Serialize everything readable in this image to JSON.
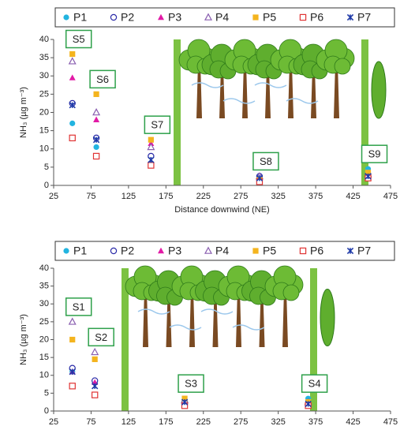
{
  "chart_data": [
    {
      "type": "scatter",
      "x_label": "Distance downwind (NE)",
      "y_label": "NH₃ (µg m⁻³)",
      "x": [
        50,
        82,
        155,
        300,
        445
      ],
      "annotations": [
        "S5",
        "S6",
        "S7",
        "S8",
        "S9"
      ],
      "xlim": [
        25,
        475
      ],
      "xticks": [
        25,
        75,
        125,
        175,
        225,
        275,
        325,
        375,
        425,
        475
      ],
      "ylim": [
        0,
        40
      ],
      "yticks": [
        0,
        5,
        10,
        15,
        20,
        25,
        30,
        35,
        40
      ],
      "series": [
        {
          "name": "P1",
          "color": "#22b4e0",
          "marker": "circle",
          "values": [
            17,
            10.5,
            6,
            2,
            4.5
          ]
        },
        {
          "name": "P2",
          "color": "#2b2ba8",
          "marker": "circle-open",
          "values": [
            22.5,
            13,
            8,
            2.5,
            3
          ]
        },
        {
          "name": "P3",
          "color": "#e21aa6",
          "marker": "triangle",
          "values": [
            29.5,
            18,
            11.5,
            1.5,
            2.5
          ]
        },
        {
          "name": "P4",
          "color": "#8a5fb0",
          "marker": "triangle-open",
          "values": [
            34,
            20,
            10.5,
            2.5,
            3
          ]
        },
        {
          "name": "P5",
          "color": "#f4b41e",
          "marker": "square",
          "values": [
            36,
            25,
            12.5,
            1.5,
            3.5
          ]
        },
        {
          "name": "P6",
          "color": "#e03434",
          "marker": "square-open",
          "values": [
            13,
            8,
            5.5,
            1,
            2
          ]
        },
        {
          "name": "P7",
          "color": "#1f3aa8",
          "marker": "star",
          "values": [
            22,
            12.5,
            7,
            2,
            2.5
          ]
        }
      ]
    },
    {
      "type": "scatter",
      "y_label": "NH₃ (µg m⁻³)",
      "x": [
        50,
        80,
        200,
        365
      ],
      "annotations": [
        "S1",
        "S2",
        "S3",
        "S4"
      ],
      "xlim": [
        25,
        475
      ],
      "xticks": [
        25,
        75,
        125,
        175,
        225,
        275,
        325,
        375,
        425,
        475
      ],
      "ylim": [
        0,
        40
      ],
      "yticks": [
        0,
        5,
        10,
        15,
        20,
        25,
        30,
        35,
        40
      ],
      "series": [
        {
          "name": "P1",
          "color": "#22b4e0",
          "marker": "circle",
          "values": [
            11,
            8,
            2.5,
            3.5
          ]
        },
        {
          "name": "P2",
          "color": "#2b2ba8",
          "marker": "circle-open",
          "values": [
            12,
            8.5,
            2.5,
            2
          ]
        },
        {
          "name": "P3",
          "color": "#e21aa6",
          "marker": "triangle",
          "values": [
            11,
            8,
            2,
            1.5
          ]
        },
        {
          "name": "P4",
          "color": "#8a5fb0",
          "marker": "triangle-open",
          "values": [
            25,
            16.5,
            3,
            2.5
          ]
        },
        {
          "name": "P5",
          "color": "#f4b41e",
          "marker": "square",
          "values": [
            20,
            14.5,
            3.5,
            2.5
          ]
        },
        {
          "name": "P6",
          "color": "#e03434",
          "marker": "square-open",
          "values": [
            7,
            4.5,
            1.5,
            1.5
          ]
        },
        {
          "name": "P7",
          "color": "#1f3aa8",
          "marker": "star",
          "values": [
            11,
            7,
            2.5,
            2
          ]
        }
      ]
    }
  ]
}
